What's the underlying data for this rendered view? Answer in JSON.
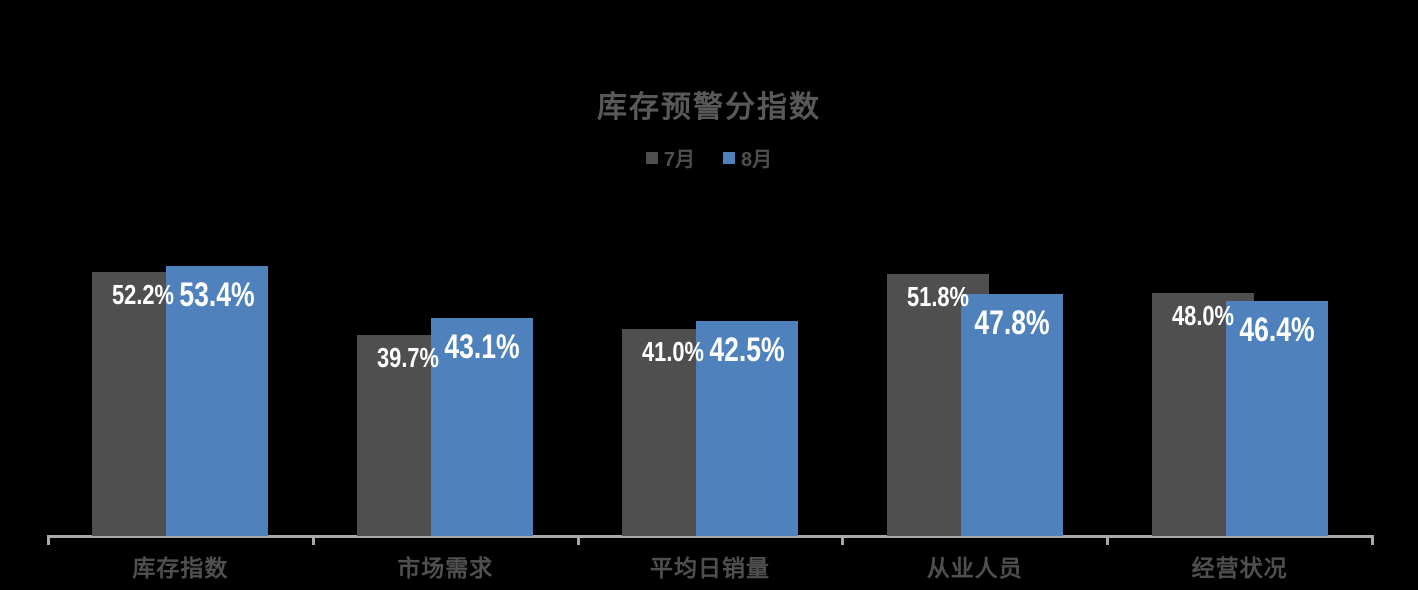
{
  "chart_data": {
    "type": "bar",
    "title": "库存预警分指数",
    "categories": [
      "库存指数",
      "市场需求",
      "平均日销量",
      "从业人员",
      "经营状况"
    ],
    "series": [
      {
        "name": "7月",
        "color": "#4f4f4f",
        "values": [
          52.2,
          39.7,
          41.0,
          51.8,
          48.0
        ],
        "labels": [
          "52.2%",
          "39.7%",
          "41.0%",
          "51.8%",
          "48.0%"
        ]
      },
      {
        "name": "8月",
        "color": "#4f81bd",
        "values": [
          53.4,
          43.1,
          42.5,
          47.8,
          46.4
        ],
        "labels": [
          "53.4%",
          "43.1%",
          "42.5%",
          "47.8%",
          "46.4%"
        ]
      }
    ],
    "xlabel": "",
    "ylabel": "",
    "ylim": [
      0,
      60
    ],
    "grid": false,
    "y_axis_visible": false,
    "legend_position": "top",
    "value_label_color": "#ffffff",
    "background": "#000000",
    "axis_color": "#a9a9a9",
    "text_color": "#595959"
  }
}
